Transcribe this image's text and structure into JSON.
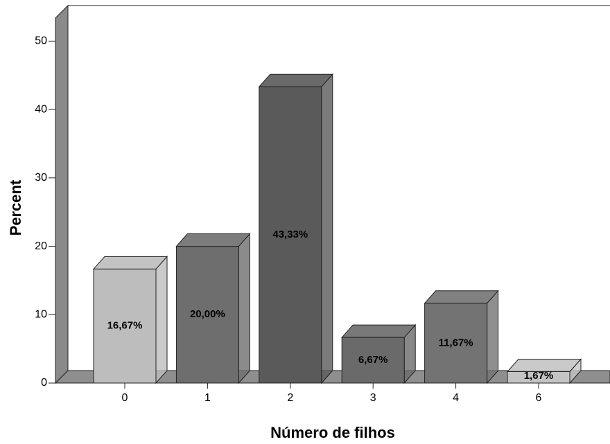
{
  "chart_data": {
    "type": "bar3d",
    "ylabel": "Percent",
    "xlabel": "Número de filhos",
    "categories": [
      "0",
      "1",
      "2",
      "3",
      "4",
      "6"
    ],
    "values": [
      16.67,
      20.0,
      43.33,
      6.67,
      11.67,
      1.67
    ],
    "value_labels": [
      "16,67%",
      "20,00%",
      "43,33%",
      "6,67%",
      "11,67%",
      "1,67%"
    ],
    "colors": [
      "#bdbdbd",
      "#6e6e6e",
      "#5a5a5a",
      "#6a6a6a",
      "#737373",
      "#c4c4c4"
    ],
    "ylim": [
      0,
      55
    ],
    "yticks": [
      0,
      10,
      20,
      30,
      40,
      50
    ]
  }
}
